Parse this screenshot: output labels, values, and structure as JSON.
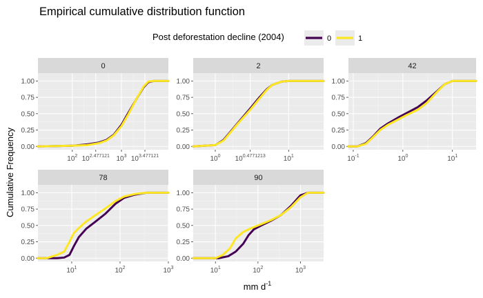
{
  "title": "Empirical cumulative distribution function",
  "legend": {
    "title": "Post deforestation decline (2004)",
    "placement": "top-center",
    "items": [
      {
        "label": "0",
        "color": "#440154"
      },
      {
        "label": "1",
        "color": "#FDE725"
      }
    ]
  },
  "axes": {
    "ylabel": "Cumulative Frequency",
    "xlabel_base": "mm d",
    "xlabel_exp": "-1"
  },
  "chart_data": [
    {
      "type": "line",
      "panel": "0",
      "x_scale": "log10",
      "xlim": [
        20,
        9000
      ],
      "ylim": [
        0,
        1
      ],
      "grid": true,
      "y_ticks": [
        "0.00",
        "0.25",
        "0.50",
        "0.75",
        "1.00"
      ],
      "x_ticks": [
        {
          "value": 100,
          "base": "10",
          "exp": "2"
        },
        {
          "value": 300,
          "base": "10",
          "exp": "2.477121"
        },
        {
          "value": 1000,
          "base": "10",
          "exp": "3"
        },
        {
          "value": 3000,
          "base": "10",
          "exp": "3.477121"
        }
      ],
      "series": [
        {
          "name": "0",
          "x": [
            20,
            100,
            200,
            350,
            500,
            700,
            1000,
            1400,
            2000,
            2800,
            3500,
            4500,
            9000
          ],
          "y": [
            0.0,
            0.01,
            0.03,
            0.06,
            0.1,
            0.18,
            0.33,
            0.52,
            0.72,
            0.9,
            0.98,
            1.0,
            1.0
          ]
        },
        {
          "name": "1",
          "x": [
            20,
            100,
            200,
            350,
            500,
            700,
            1000,
            1400,
            2000,
            2800,
            3500,
            4500,
            9000
          ],
          "y": [
            0.0,
            0.01,
            0.02,
            0.05,
            0.09,
            0.17,
            0.31,
            0.5,
            0.72,
            0.91,
            0.99,
            1.0,
            1.0
          ]
        }
      ]
    },
    {
      "type": "line",
      "panel": "2",
      "x_scale": "log10",
      "xlim": [
        0.5,
        30
      ],
      "ylim": [
        0,
        1
      ],
      "grid": true,
      "y_ticks": [
        "0.00",
        "0.25",
        "0.50",
        "0.75",
        "1.00"
      ],
      "x_ticks": [
        {
          "value": 1,
          "base": "10",
          "exp": "0"
        },
        {
          "value": 3,
          "base": "10",
          "exp": "0.4771213"
        },
        {
          "value": 10,
          "base": "10",
          "exp": "1"
        }
      ],
      "series": [
        {
          "name": "0",
          "x": [
            0.5,
            1.0,
            1.3,
            1.6,
            2.0,
            3.0,
            4.0,
            5.0,
            6.0,
            8.0,
            10,
            12,
            30
          ],
          "y": [
            0.0,
            0.02,
            0.1,
            0.22,
            0.35,
            0.58,
            0.75,
            0.87,
            0.94,
            0.99,
            1.0,
            1.0,
            1.0
          ]
        },
        {
          "name": "1",
          "x": [
            0.5,
            1.0,
            1.3,
            1.6,
            2.0,
            3.0,
            4.0,
            5.0,
            6.0,
            8.0,
            10,
            12,
            30
          ],
          "y": [
            0.0,
            0.02,
            0.09,
            0.21,
            0.34,
            0.56,
            0.73,
            0.86,
            0.94,
            0.99,
            1.0,
            1.0,
            1.0
          ]
        }
      ]
    },
    {
      "type": "line",
      "panel": "42",
      "x_scale": "log10",
      "xlim": [
        0.08,
        30
      ],
      "ylim": [
        0,
        1
      ],
      "grid": true,
      "y_ticks": [
        "0.00",
        "0.25",
        "0.50",
        "0.75",
        "1.00"
      ],
      "x_ticks": [
        {
          "value": 0.1,
          "base": "10",
          "exp": "-1"
        },
        {
          "value": 1,
          "base": "10",
          "exp": "0"
        },
        {
          "value": 10,
          "base": "10",
          "exp": "1"
        }
      ],
      "series": [
        {
          "name": "0",
          "x": [
            0.08,
            0.12,
            0.18,
            0.25,
            0.35,
            0.5,
            0.8,
            1.2,
            2.0,
            3.0,
            5.0,
            7.0,
            10,
            13,
            30
          ],
          "y": [
            0.0,
            0.0,
            0.05,
            0.15,
            0.27,
            0.35,
            0.44,
            0.51,
            0.6,
            0.7,
            0.85,
            0.95,
            1.0,
            1.0,
            1.0
          ]
        },
        {
          "name": "1",
          "x": [
            0.08,
            0.12,
            0.18,
            0.25,
            0.35,
            0.5,
            0.8,
            1.2,
            2.0,
            3.0,
            5.0,
            7.0,
            10,
            13,
            30
          ],
          "y": [
            0.0,
            0.0,
            0.04,
            0.14,
            0.25,
            0.33,
            0.41,
            0.48,
            0.56,
            0.66,
            0.84,
            0.95,
            1.0,
            1.0,
            1.0
          ]
        }
      ]
    },
    {
      "type": "line",
      "panel": "78",
      "x_scale": "log10",
      "xlim": [
        2,
        1000
      ],
      "ylim": [
        0,
        1
      ],
      "grid": true,
      "y_ticks": [
        "0.00",
        "0.25",
        "0.50",
        "0.75",
        "1.00"
      ],
      "x_ticks": [
        {
          "value": 10,
          "base": "10",
          "exp": "1"
        },
        {
          "value": 100,
          "base": "10",
          "exp": "2"
        },
        {
          "value": 1000,
          "base": "10",
          "exp": "3"
        }
      ],
      "series": [
        {
          "name": "0",
          "x": [
            2,
            5,
            7,
            9,
            11,
            14,
            20,
            30,
            50,
            80,
            120,
            200,
            350,
            1000
          ],
          "y": [
            0.0,
            0.0,
            0.01,
            0.05,
            0.18,
            0.32,
            0.45,
            0.55,
            0.68,
            0.83,
            0.92,
            0.97,
            1.0,
            1.0
          ]
        },
        {
          "name": "1",
          "x": [
            2,
            3,
            5,
            7,
            9,
            11,
            14,
            20,
            30,
            50,
            80,
            120,
            200,
            350,
            1000
          ],
          "y": [
            0.0,
            0.0,
            0.05,
            0.1,
            0.25,
            0.38,
            0.46,
            0.56,
            0.65,
            0.76,
            0.87,
            0.94,
            0.98,
            1.0,
            1.0
          ]
        }
      ]
    },
    {
      "type": "line",
      "panel": "90",
      "x_scale": "log10",
      "xlim": [
        3,
        3500
      ],
      "ylim": [
        0,
        1
      ],
      "grid": true,
      "y_ticks": [
        "0.00",
        "0.25",
        "0.50",
        "0.75",
        "1.00"
      ],
      "x_ticks": [
        {
          "value": 10,
          "base": "10",
          "exp": "1"
        },
        {
          "value": 100,
          "base": "10",
          "exp": "2"
        },
        {
          "value": 1000,
          "base": "10",
          "exp": "3"
        }
      ],
      "series": [
        {
          "name": "0",
          "x": [
            3,
            12,
            20,
            30,
            45,
            60,
            80,
            120,
            200,
            350,
            600,
            1000,
            1500,
            3500
          ],
          "y": [
            0.0,
            0.0,
            0.03,
            0.1,
            0.22,
            0.35,
            0.44,
            0.5,
            0.57,
            0.66,
            0.8,
            0.96,
            1.0,
            1.0
          ]
        },
        {
          "name": "1",
          "x": [
            3,
            10,
            15,
            22,
            30,
            45,
            70,
            120,
            200,
            350,
            600,
            1000,
            1500,
            3500
          ],
          "y": [
            0.0,
            0.0,
            0.05,
            0.15,
            0.3,
            0.4,
            0.46,
            0.52,
            0.58,
            0.66,
            0.78,
            0.93,
            1.0,
            1.0
          ]
        }
      ]
    }
  ]
}
